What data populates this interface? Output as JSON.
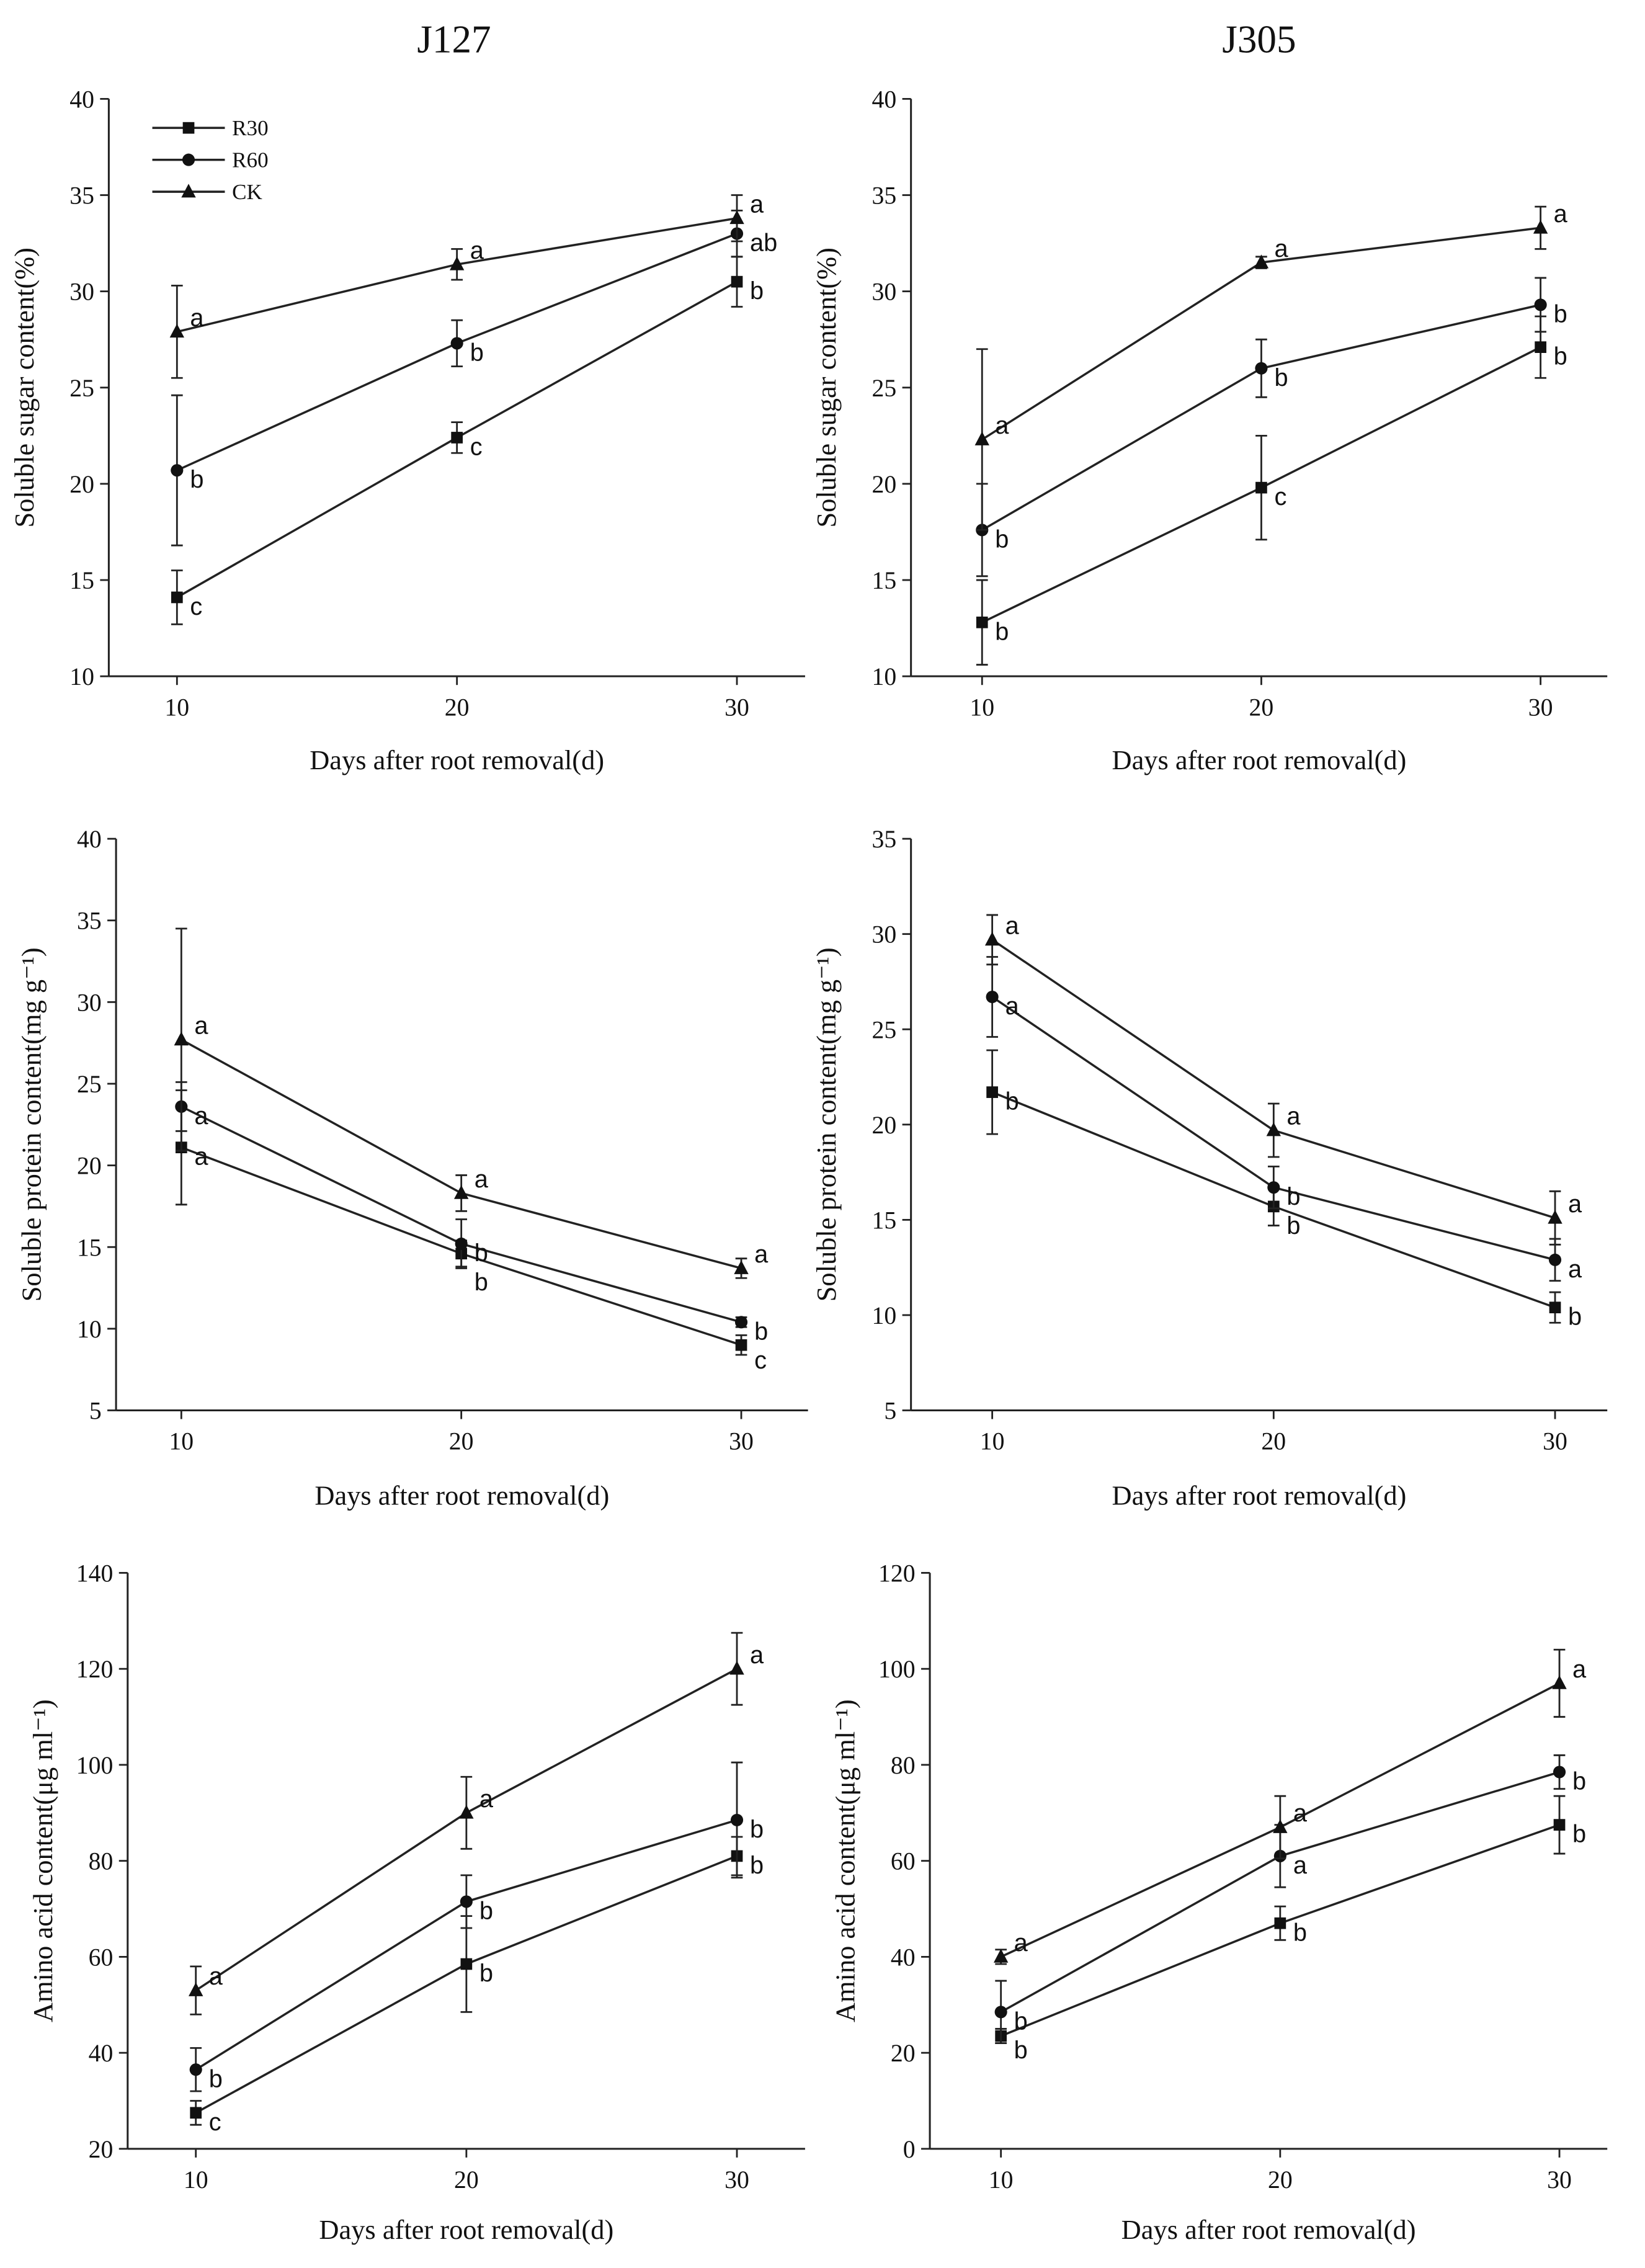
{
  "column_titles": [
    "J127",
    "J305"
  ],
  "legend": [
    "R30",
    "R60",
    "CK"
  ],
  "chart_data": [
    {
      "type": "line",
      "title": "J127",
      "xlabel": "Days after root removal(d)",
      "ylabel": "Soluble sugar content(%)",
      "x": [
        10,
        20,
        30
      ],
      "xticks": [
        "10",
        "20",
        "30"
      ],
      "ylim": [
        10,
        40
      ],
      "yticks": [
        "10",
        "15",
        "20",
        "25",
        "30",
        "35",
        "40"
      ],
      "legend_position": "top-left",
      "grid": false,
      "series": [
        {
          "name": "R30",
          "marker": "square",
          "values": [
            14.1,
            22.4,
            30.5
          ],
          "errors": [
            1.4,
            0.8,
            1.3
          ],
          "letters": [
            "c",
            "c",
            "b"
          ]
        },
        {
          "name": "R60",
          "marker": "circle",
          "values": [
            20.7,
            27.3,
            33.0
          ],
          "errors": [
            3.9,
            1.2,
            1.2
          ],
          "letters": [
            "b",
            "b",
            "ab"
          ]
        },
        {
          "name": "CK",
          "marker": "triangle",
          "values": [
            27.9,
            31.4,
            33.8
          ],
          "errors": [
            2.4,
            0.8,
            1.2
          ],
          "letters": [
            "a",
            "a",
            "a"
          ]
        }
      ]
    },
    {
      "type": "line",
      "title": "J305",
      "xlabel": "Days after root removal(d)",
      "ylabel": "Soluble sugar content(%)",
      "x": [
        10,
        20,
        30
      ],
      "xticks": [
        "10",
        "20",
        "30"
      ],
      "ylim": [
        10,
        40
      ],
      "yticks": [
        "10",
        "15",
        "20",
        "25",
        "30",
        "35",
        "40"
      ],
      "grid": false,
      "series": [
        {
          "name": "R30",
          "marker": "square",
          "values": [
            12.8,
            19.8,
            27.1
          ],
          "errors": [
            2.2,
            2.7,
            1.6
          ],
          "letters": [
            "b",
            "c",
            "b"
          ]
        },
        {
          "name": "R60",
          "marker": "circle",
          "values": [
            17.6,
            26.0,
            29.3
          ],
          "errors": [
            2.4,
            1.5,
            1.4
          ],
          "letters": [
            "b",
            "b",
            "b"
          ]
        },
        {
          "name": "CK",
          "marker": "triangle",
          "values": [
            22.3,
            31.5,
            33.3
          ],
          "errors": [
            4.7,
            0.3,
            1.1
          ],
          "letters": [
            "a",
            "a",
            "a"
          ]
        }
      ]
    },
    {
      "type": "line",
      "title": "",
      "xlabel": "Days after root removal(d)",
      "ylabel": "Soluble protein content(mg g⁻¹)",
      "x": [
        10,
        20,
        30
      ],
      "xticks": [
        "10",
        "20",
        "30"
      ],
      "ylim": [
        5,
        40
      ],
      "yticks": [
        "5",
        "10",
        "15",
        "20",
        "25",
        "30",
        "35",
        "40"
      ],
      "grid": false,
      "series": [
        {
          "name": "R30",
          "marker": "square",
          "values": [
            21.1,
            14.6,
            9.0
          ],
          "errors": [
            3.5,
            0.8,
            0.6
          ],
          "letters": [
            "a",
            "b",
            "c"
          ]
        },
        {
          "name": "R60",
          "marker": "circle",
          "values": [
            23.6,
            15.2,
            10.4
          ],
          "errors": [
            1.5,
            1.5,
            0.3
          ],
          "letters": [
            "a",
            "b",
            "b"
          ]
        },
        {
          "name": "CK",
          "marker": "triangle",
          "values": [
            27.7,
            18.3,
            13.7
          ],
          "errors": [
            6.8,
            1.1,
            0.6
          ],
          "letters": [
            "a",
            "a",
            "a"
          ]
        }
      ]
    },
    {
      "type": "line",
      "title": "",
      "xlabel": "Days after root removal(d)",
      "ylabel": "Soluble protein content(mg g⁻¹)",
      "x": [
        10,
        20,
        30
      ],
      "xticks": [
        "10",
        "20",
        "30"
      ],
      "ylim": [
        5,
        35
      ],
      "yticks": [
        "5",
        "10",
        "15",
        "20",
        "25",
        "30",
        "35"
      ],
      "grid": false,
      "series": [
        {
          "name": "R30",
          "marker": "square",
          "values": [
            21.7,
            15.7,
            10.4
          ],
          "errors": [
            2.2,
            1.0,
            0.8
          ],
          "letters": [
            "b",
            "b",
            "b"
          ]
        },
        {
          "name": "R60",
          "marker": "circle",
          "values": [
            26.7,
            16.7,
            12.9
          ],
          "errors": [
            2.1,
            1.1,
            1.1
          ],
          "letters": [
            "a",
            "b",
            "a"
          ]
        },
        {
          "name": "CK",
          "marker": "triangle",
          "values": [
            29.7,
            19.7,
            15.1
          ],
          "errors": [
            1.3,
            1.4,
            1.4
          ],
          "letters": [
            "a",
            "a",
            "a"
          ]
        }
      ]
    },
    {
      "type": "line",
      "title": "",
      "xlabel": "Days after root removal(d)",
      "ylabel": "Amino acid content(μg ml⁻¹)",
      "x": [
        10,
        20,
        30
      ],
      "xticks": [
        "10",
        "20",
        "30"
      ],
      "ylim": [
        20,
        140
      ],
      "yticks": [
        "20",
        "40",
        "60",
        "80",
        "100",
        "120",
        "140"
      ],
      "grid": false,
      "series": [
        {
          "name": "R30",
          "marker": "square",
          "values": [
            27.5,
            58.5,
            81.0
          ],
          "errors": [
            2.5,
            10.0,
            4.0
          ],
          "letters": [
            "c",
            "b",
            "b"
          ]
        },
        {
          "name": "R60",
          "marker": "circle",
          "values": [
            36.5,
            71.5,
            88.5
          ],
          "errors": [
            4.5,
            5.5,
            12.0
          ],
          "letters": [
            "b",
            "b",
            "b"
          ]
        },
        {
          "name": "CK",
          "marker": "triangle",
          "values": [
            53.0,
            90.0,
            120.0
          ],
          "errors": [
            5.0,
            7.5,
            7.5
          ],
          "letters": [
            "a",
            "a",
            "a"
          ]
        }
      ]
    },
    {
      "type": "line",
      "title": "",
      "xlabel": "Days after root removal(d)",
      "ylabel": "Amino acid content(μg ml⁻¹)",
      "x": [
        10,
        20,
        30
      ],
      "xticks": [
        "10",
        "20",
        "30"
      ],
      "ylim": [
        0,
        120
      ],
      "yticks": [
        "0",
        "20",
        "40",
        "60",
        "80",
        "100",
        "120"
      ],
      "grid": false,
      "series": [
        {
          "name": "R30",
          "marker": "square",
          "values": [
            23.5,
            47.0,
            67.5
          ],
          "errors": [
            1.5,
            3.5,
            6.0
          ],
          "letters": [
            "b",
            "b",
            "b"
          ]
        },
        {
          "name": "R60",
          "marker": "circle",
          "values": [
            28.5,
            61.0,
            78.5
          ],
          "errors": [
            6.5,
            6.5,
            3.5
          ],
          "letters": [
            "b",
            "a",
            "b"
          ]
        },
        {
          "name": "CK",
          "marker": "triangle",
          "values": [
            40.0,
            67.0,
            97.0
          ],
          "errors": [
            1.5,
            6.5,
            7.0
          ],
          "letters": [
            "a",
            "a",
            "a"
          ]
        }
      ]
    }
  ]
}
